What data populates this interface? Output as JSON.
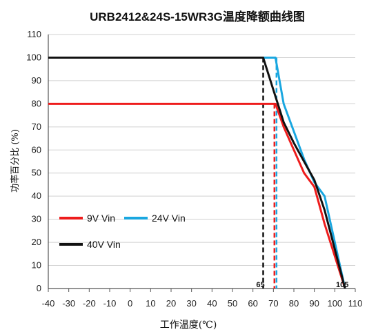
{
  "chart_data": {
    "type": "line",
    "title": "URB2412&24S-15WR3G温度降额曲线图",
    "xlabel": "工作温度(℃)",
    "ylabel": "功率百分比 (%)",
    "xlim": [
      -40,
      110
    ],
    "ylim": [
      0,
      110
    ],
    "x_ticks": [
      -40,
      -30,
      -20,
      -10,
      0,
      10,
      20,
      30,
      40,
      50,
      60,
      70,
      80,
      90,
      100,
      110
    ],
    "y_ticks": [
      0,
      10,
      20,
      30,
      40,
      50,
      60,
      70,
      80,
      90,
      100,
      110
    ],
    "x_tick_labels": [
      "-40",
      "-30",
      "-20",
      "-10",
      "0",
      "10",
      "20",
      "30",
      "40",
      "50",
      "60",
      "70",
      "80",
      "90",
      "100",
      "110"
    ],
    "y_tick_labels": [
      "0",
      "10",
      "20",
      "30",
      "40",
      "50",
      "60",
      "70",
      "80",
      "90",
      "100",
      "110"
    ],
    "grid": "horizontal",
    "series": [
      {
        "name": "9V Vin",
        "color": "#ee1c1c",
        "x": [
          -40,
          71,
          75,
          80,
          85,
          90,
          95,
          105
        ],
        "y": [
          80,
          80,
          70,
          60,
          50,
          44,
          28,
          0
        ]
      },
      {
        "name": "24V Vin",
        "color": "#1aa7e0",
        "x": [
          -40,
          71,
          75,
          80,
          85,
          90,
          95,
          105
        ],
        "y": [
          100,
          100,
          80,
          68,
          56,
          46,
          40,
          0
        ]
      },
      {
        "name": "40V Vin",
        "color": "#111111",
        "x": [
          -40,
          65,
          70,
          75,
          80,
          85,
          90,
          95,
          105
        ],
        "y": [
          100,
          100,
          86,
          72,
          63,
          55,
          47,
          34,
          0
        ]
      }
    ],
    "reference_lines": [
      {
        "x": 65,
        "color": "#111111",
        "style": "dashed"
      },
      {
        "x": 71,
        "color": "#ee1c1c",
        "style": "dashed"
      },
      {
        "x": 71,
        "color": "#1aa7e0",
        "style": "dashed"
      }
    ],
    "annotations": [
      {
        "text": "65",
        "x": 65
      },
      {
        "text": "105",
        "x": 105
      }
    ],
    "legend": "inside-lower-left"
  }
}
